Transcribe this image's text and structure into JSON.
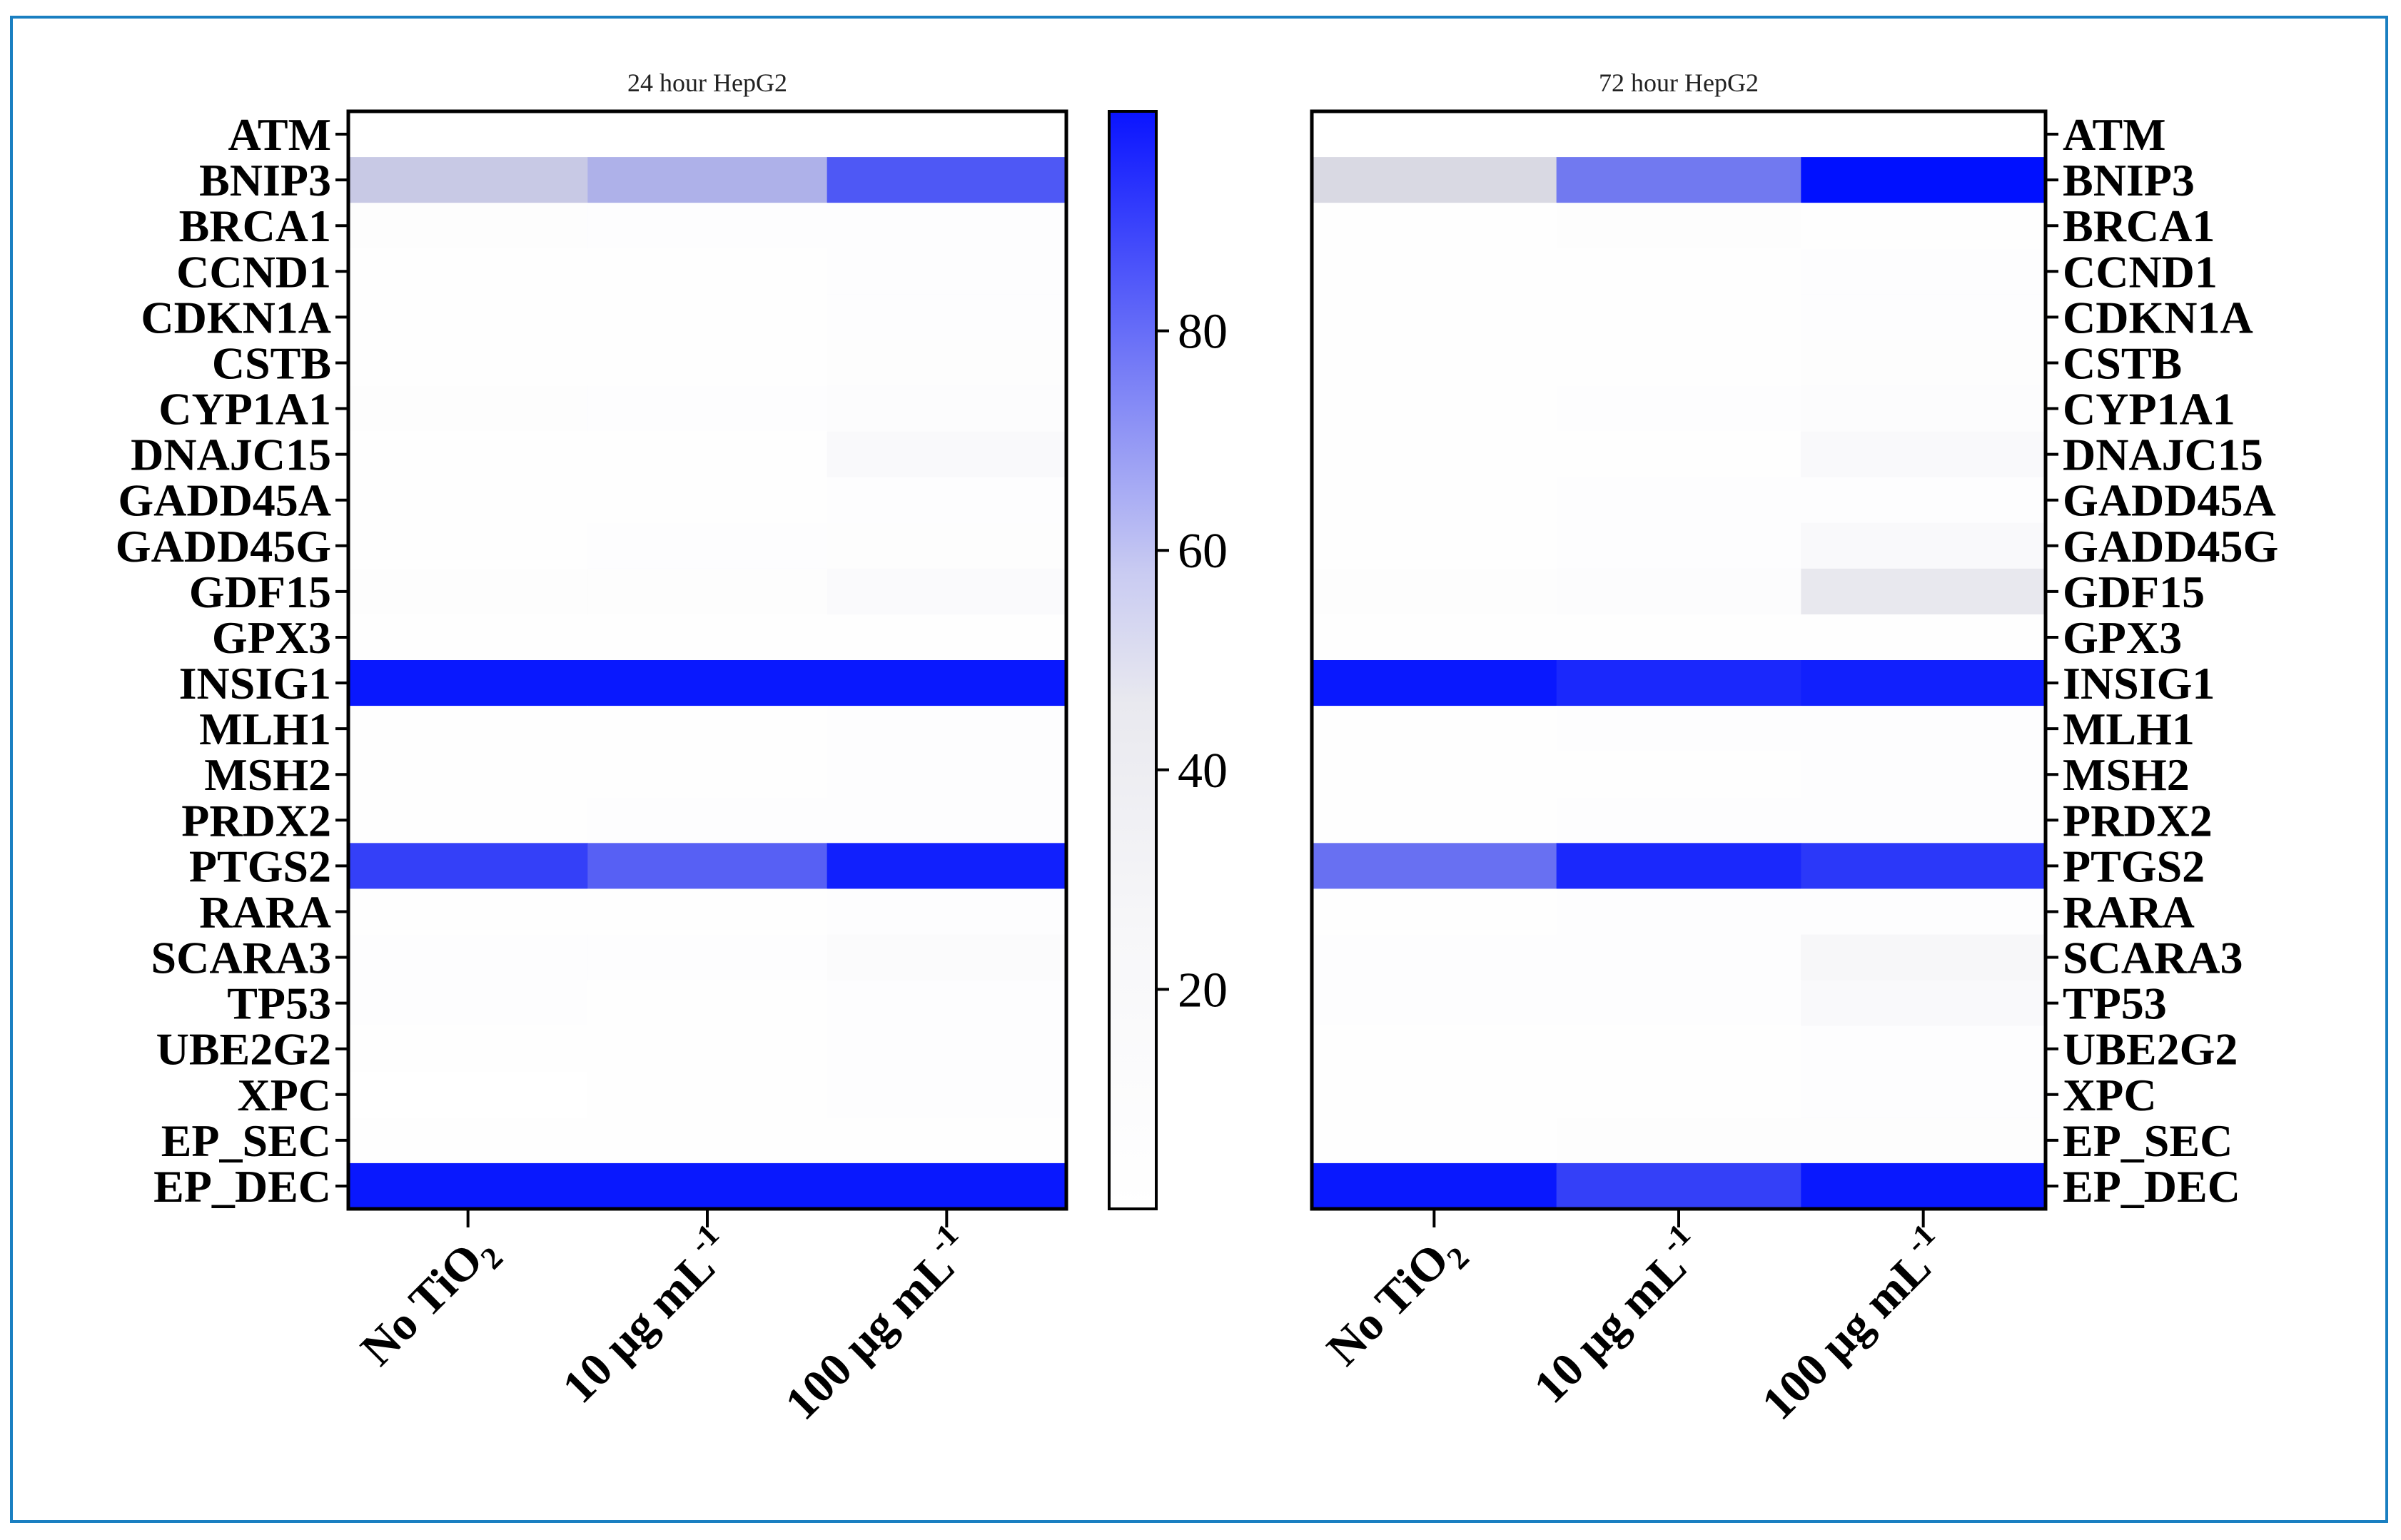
{
  "chart_data": {
    "type": "heatmap",
    "genes": [
      "ATM",
      "BNIP3",
      "BRCA1",
      "CCND1",
      "CDKN1A",
      "CSTB",
      "CYP1A1",
      "DNAJC15",
      "GADD45A",
      "GADD45G",
      "GDF15",
      "GPX3",
      "INSIG1",
      "MLH1",
      "MSH2",
      "PRDX2",
      "PTGS2",
      "RARA",
      "SCARA3",
      "TP53",
      "UBE2G2",
      "XPC",
      "EP_SEC",
      "EP_DEC"
    ],
    "x_labels": [
      {
        "main": "No TiO",
        "sub": "2",
        "sup": ""
      },
      {
        "main": "10 μg mL",
        "sub": "",
        "sup": "-1"
      },
      {
        "main": "100 μg mL",
        "sub": "",
        "sup": "-1"
      }
    ],
    "colorbar": {
      "ticks": [
        20,
        40,
        60,
        80
      ],
      "min": 0,
      "max": 100,
      "colors": {
        "low": "#ffffff",
        "mid": "#d9d9e3",
        "high": "#0010ff"
      }
    },
    "panels": [
      {
        "title": "24 hour HepG2",
        "values": [
          [
            0,
            0,
            0
          ],
          [
            54,
            60,
            82
          ],
          [
            3,
            2,
            2
          ],
          [
            1,
            1,
            2
          ],
          [
            1,
            1,
            2
          ],
          [
            1,
            1,
            3
          ],
          [
            3,
            2,
            4
          ],
          [
            1,
            1,
            8
          ],
          [
            1,
            1,
            2
          ],
          [
            1,
            2,
            3
          ],
          [
            3,
            3,
            6
          ],
          [
            1,
            1,
            1
          ],
          [
            98,
            98,
            98
          ],
          [
            1,
            1,
            2
          ],
          [
            1,
            1,
            2
          ],
          [
            1,
            2,
            2
          ],
          [
            88,
            80,
            96
          ],
          [
            1,
            1,
            2
          ],
          [
            2,
            2,
            5
          ],
          [
            2,
            1,
            2
          ],
          [
            1,
            1,
            2
          ],
          [
            0,
            1,
            2
          ],
          [
            1,
            1,
            1
          ],
          [
            98,
            98,
            98
          ]
        ]
      },
      {
        "title": "72 hour HepG2",
        "values": [
          [
            0,
            0,
            0
          ],
          [
            50,
            74,
            100
          ],
          [
            1,
            3,
            1
          ],
          [
            1,
            1,
            2
          ],
          [
            1,
            1,
            2
          ],
          [
            1,
            1,
            3
          ],
          [
            1,
            2,
            4
          ],
          [
            1,
            1,
            8
          ],
          [
            1,
            2,
            2
          ],
          [
            1,
            2,
            8
          ],
          [
            3,
            4,
            30
          ],
          [
            1,
            1,
            1
          ],
          [
            98,
            94,
            96
          ],
          [
            1,
            2,
            2
          ],
          [
            1,
            1,
            2
          ],
          [
            1,
            2,
            2
          ],
          [
            76,
            94,
            90
          ],
          [
            1,
            2,
            2
          ],
          [
            2,
            2,
            10
          ],
          [
            2,
            2,
            8
          ],
          [
            1,
            1,
            2
          ],
          [
            1,
            1,
            2
          ],
          [
            1,
            3,
            3
          ],
          [
            98,
            88,
            98
          ]
        ]
      }
    ]
  }
}
